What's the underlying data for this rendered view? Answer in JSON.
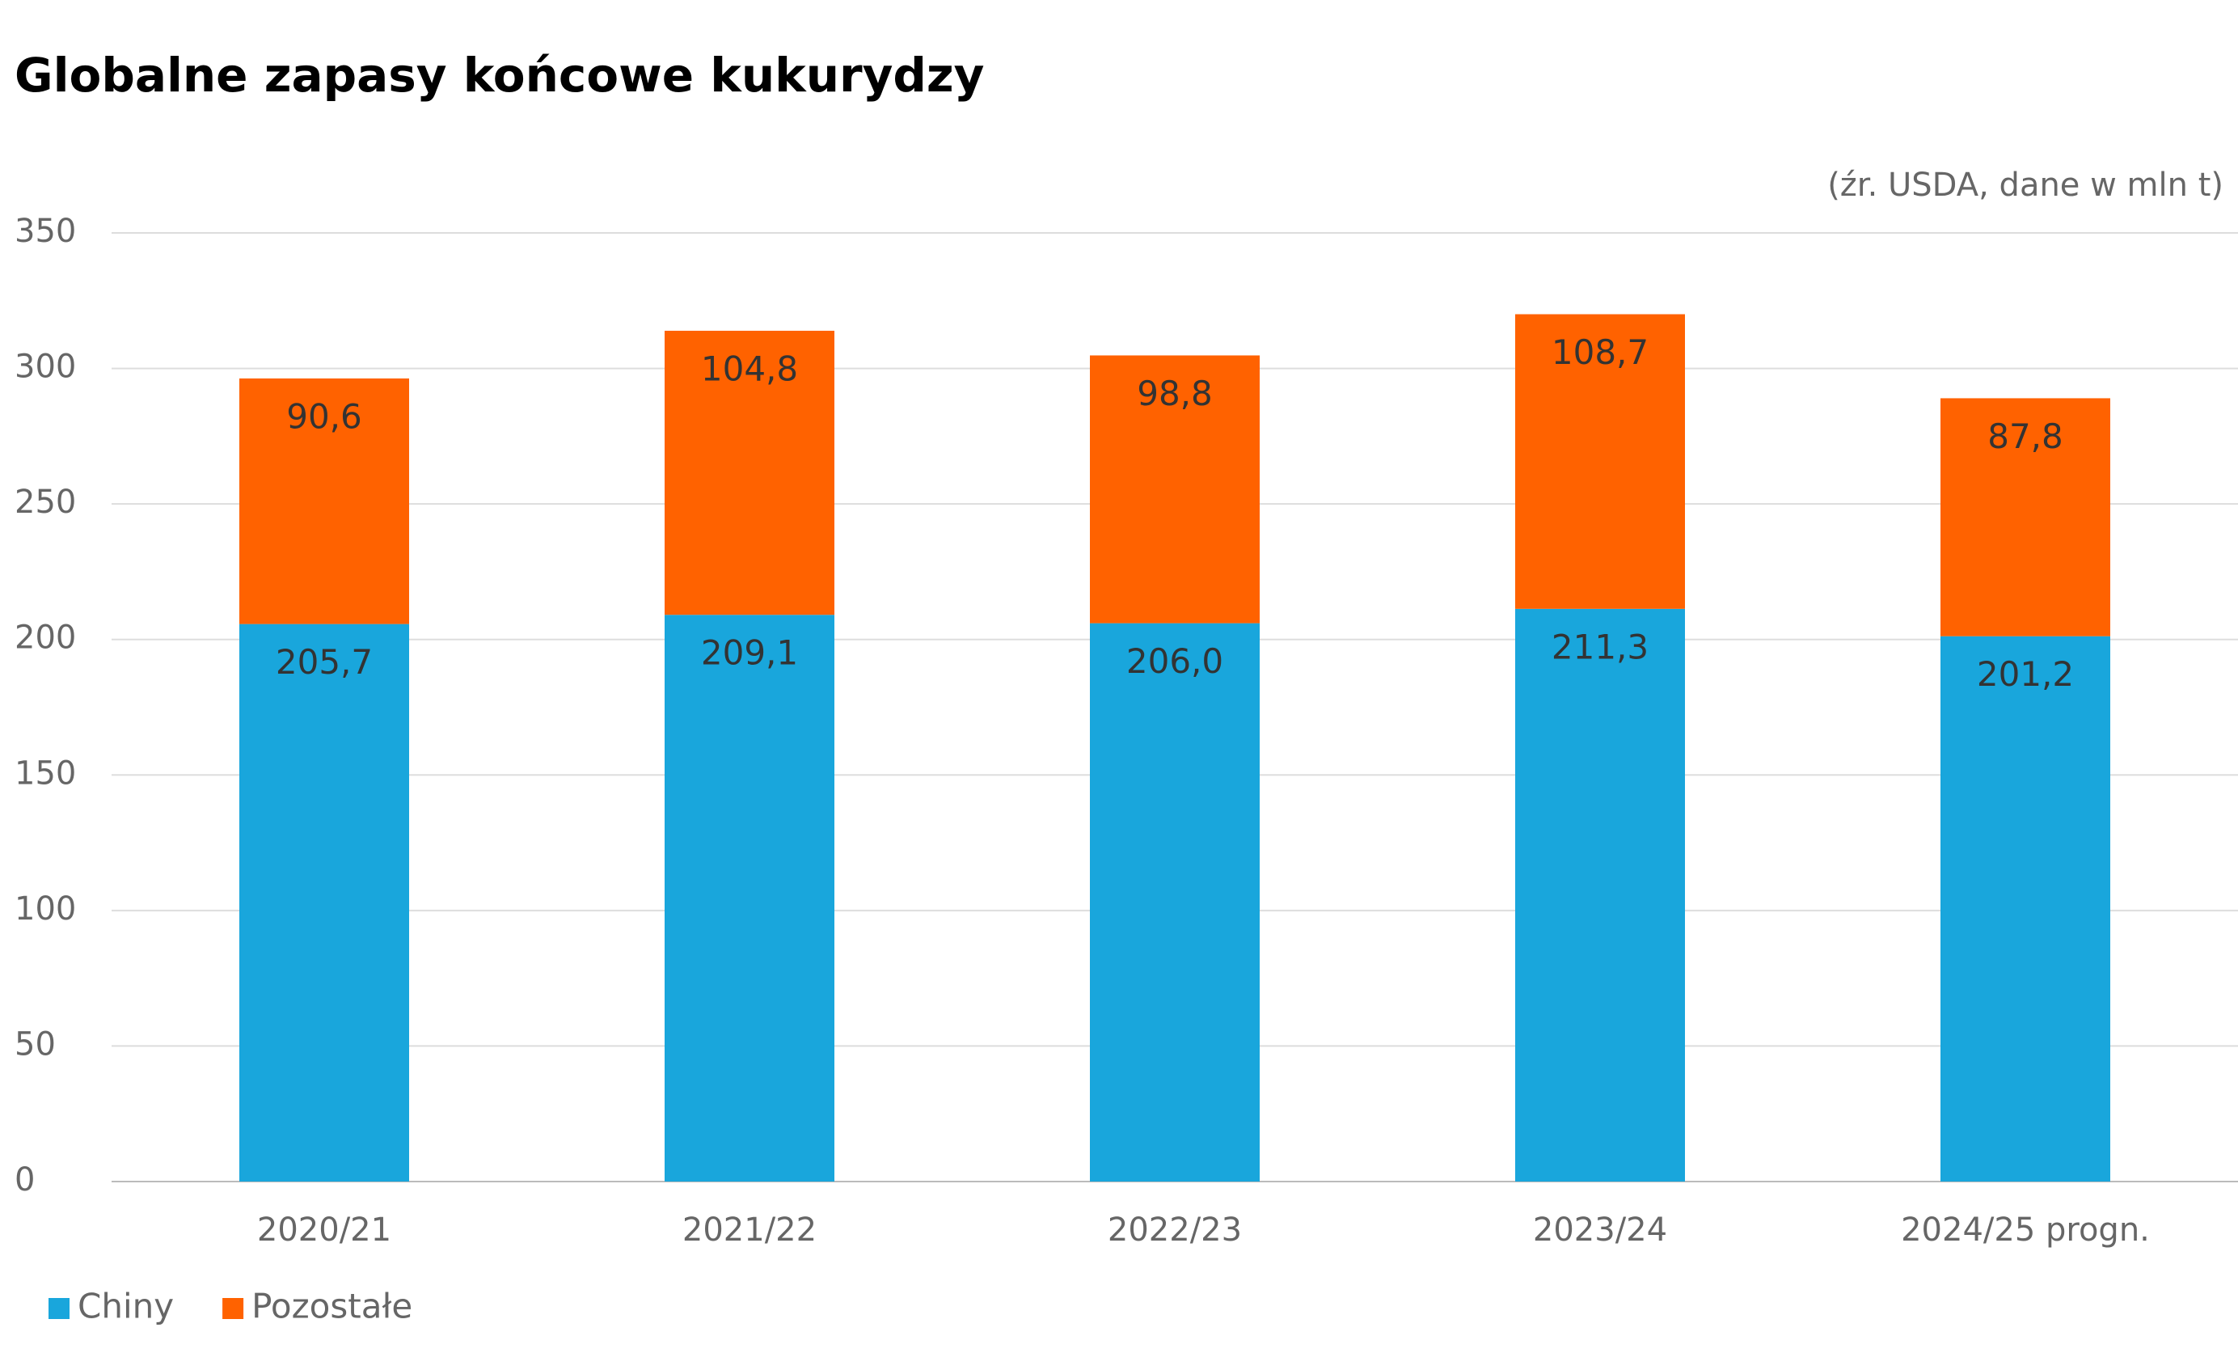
{
  "chart_data": {
    "type": "stacked_bar",
    "title": "Globalne zapasy końcowe kukurydzy",
    "subtitle": "(źr. USDA, dane w mln t)",
    "categories": [
      "2020/21",
      "2021/22",
      "2022/23",
      "2023/24",
      "2024/25 progn."
    ],
    "series": [
      {
        "name": "Chiny",
        "color": "#19a6dc",
        "values": [
          205.7,
          209.1,
          206.0,
          211.3,
          201.2
        ],
        "value_labels": [
          "205,7",
          "209,1",
          "206,0",
          "211,3",
          "201,2"
        ]
      },
      {
        "name": "Pozostałe",
        "color": "#ff6200",
        "values": [
          90.6,
          104.8,
          98.8,
          108.7,
          87.8
        ],
        "value_labels": [
          "90,6",
          "104,8",
          "98,8",
          "108,7",
          "87,8"
        ]
      }
    ],
    "ylim": [
      0,
      350
    ],
    "yticks": [
      0,
      50,
      100,
      150,
      200,
      250,
      300,
      350
    ],
    "grid": true,
    "legend": "bottom-left"
  }
}
